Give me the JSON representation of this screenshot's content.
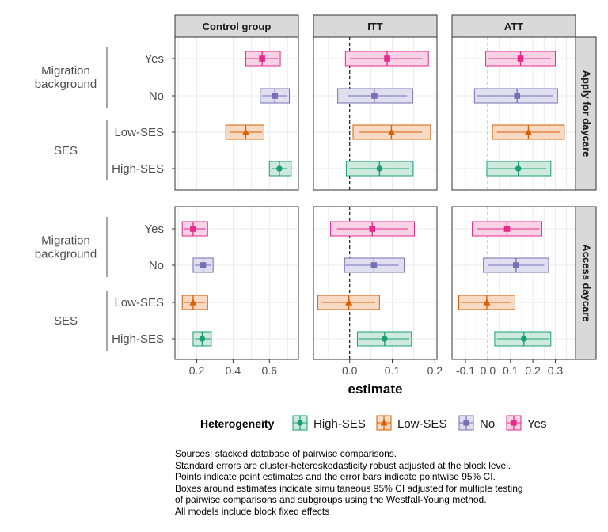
{
  "chart_data": {
    "type": "forest-faceted",
    "xlabel": "estimate",
    "columns": [
      {
        "label": "Control group",
        "xlim": [
          0.08,
          0.76
        ],
        "ticks": [
          0.2,
          0.4,
          0.6
        ],
        "tick_labels": [
          "0.2",
          "0.4",
          "0.6"
        ],
        "ref_line": null
      },
      {
        "label": "ITT",
        "xlim": [
          -0.085,
          0.205
        ],
        "ticks": [
          0.0,
          0.1,
          0.2
        ],
        "tick_labels": [
          "0.0",
          "0.1",
          "0.2"
        ],
        "ref_line": 0
      },
      {
        "label": "ATT",
        "xlim": [
          -0.16,
          0.39
        ],
        "ticks": [
          -0.1,
          0.0,
          0.1,
          0.2,
          0.3
        ],
        "tick_labels": [
          "-0.1",
          "0.0",
          "0.1",
          "0.2",
          "0.3"
        ],
        "ref_line": 0
      }
    ],
    "rows": [
      {
        "label": "Apply for daycare"
      },
      {
        "label": "Access daycare"
      }
    ],
    "y_categories": [
      "Yes",
      "No",
      "Low-SES",
      "High-SES"
    ],
    "y_groups": [
      {
        "label_lines": [
          "Migration",
          "background"
        ],
        "members": [
          "Yes",
          "No"
        ]
      },
      {
        "label_lines": [
          "SES"
        ],
        "members": [
          "Low-SES",
          "High-SES"
        ]
      }
    ],
    "legend": {
      "title": "Heterogeneity",
      "position": "bottom",
      "entries": [
        {
          "label": "High-SES",
          "color": "#1b9e77",
          "fill": "#cdeadd",
          "shape": "circle"
        },
        {
          "label": "Low-SES",
          "color": "#d95f02",
          "fill": "#f8dac4",
          "shape": "triangle"
        },
        {
          "label": "No",
          "color": "#7570b3",
          "fill": "#e0dff0",
          "shape": "square"
        },
        {
          "label": "Yes",
          "color": "#e7298a",
          "fill": "#f9d2e6",
          "shape": "square"
        }
      ]
    },
    "panels": [
      {
        "row": 0,
        "col": 0,
        "points": [
          {
            "cat": "Yes",
            "est": 0.56,
            "ci": [
              0.47,
              0.65
            ],
            "box": [
              0.47,
              0.66
            ]
          },
          {
            "cat": "No",
            "est": 0.63,
            "ci": [
              0.56,
              0.7
            ],
            "box": [
              0.55,
              0.71
            ]
          },
          {
            "cat": "Low-SES",
            "est": 0.47,
            "ci": [
              0.38,
              0.56
            ],
            "box": [
              0.36,
              0.57
            ]
          },
          {
            "cat": "High-SES",
            "est": 0.655,
            "ci": [
              0.61,
              0.7
            ],
            "box": [
              0.6,
              0.72
            ]
          }
        ]
      },
      {
        "row": 0,
        "col": 1,
        "points": [
          {
            "cat": "Yes",
            "est": 0.088,
            "ci": [
              0.0,
              0.17
            ],
            "box": [
              -0.01,
              0.185
            ]
          },
          {
            "cat": "No",
            "est": 0.058,
            "ci": [
              -0.005,
              0.135
            ],
            "box": [
              -0.028,
              0.148
            ]
          },
          {
            "cat": "Low-SES",
            "est": 0.098,
            "ci": [
              0.023,
              0.17
            ],
            "box": [
              0.008,
              0.19
            ]
          },
          {
            "cat": "High-SES",
            "est": 0.07,
            "ci": [
              0.0,
              0.14
            ],
            "box": [
              -0.008,
              0.149
            ]
          }
        ]
      },
      {
        "row": 0,
        "col": 2,
        "points": [
          {
            "cat": "Yes",
            "est": 0.145,
            "ci": [
              0.0,
              0.28
            ],
            "box": [
              -0.01,
              0.3
            ]
          },
          {
            "cat": "No",
            "est": 0.13,
            "ci": [
              -0.05,
              0.29
            ],
            "box": [
              -0.06,
              0.31
            ]
          },
          {
            "cat": "Low-SES",
            "est": 0.18,
            "ci": [
              0.04,
              0.32
            ],
            "box": [
              0.02,
              0.34
            ]
          },
          {
            "cat": "High-SES",
            "est": 0.135,
            "ci": [
              0.0,
              0.26
            ],
            "box": [
              -0.005,
              0.28
            ]
          }
        ]
      },
      {
        "row": 1,
        "col": 0,
        "points": [
          {
            "cat": "Yes",
            "est": 0.18,
            "ci": [
              0.13,
              0.25
            ],
            "box": [
              0.12,
              0.26
            ]
          },
          {
            "cat": "No",
            "est": 0.235,
            "ci": [
              0.19,
              0.28
            ],
            "box": [
              0.18,
              0.29
            ]
          },
          {
            "cat": "Low-SES",
            "est": 0.18,
            "ci": [
              0.13,
              0.25
            ],
            "box": [
              0.12,
              0.26
            ]
          },
          {
            "cat": "High-SES",
            "est": 0.23,
            "ci": [
              0.19,
              0.28
            ],
            "box": [
              0.18,
              0.28
            ]
          }
        ]
      },
      {
        "row": 1,
        "col": 1,
        "points": [
          {
            "cat": "Yes",
            "est": 0.053,
            "ci": [
              -0.03,
              0.137
            ],
            "box": [
              -0.045,
              0.152
            ]
          },
          {
            "cat": "No",
            "est": 0.057,
            "ci": [
              -0.01,
              0.115
            ],
            "box": [
              -0.012,
              0.128
            ]
          },
          {
            "cat": "Low-SES",
            "est": -0.002,
            "ci": [
              -0.065,
              0.06
            ],
            "box": [
              -0.075,
              0.07
            ]
          },
          {
            "cat": "High-SES",
            "est": 0.082,
            "ci": [
              0.02,
              0.14
            ],
            "box": [
              0.018,
              0.145
            ]
          }
        ]
      },
      {
        "row": 1,
        "col": 2,
        "points": [
          {
            "cat": "Yes",
            "est": 0.085,
            "ci": [
              -0.05,
              0.23
            ],
            "box": [
              -0.07,
              0.24
            ]
          },
          {
            "cat": "No",
            "est": 0.125,
            "ci": [
              0.0,
              0.25
            ],
            "box": [
              -0.02,
              0.27
            ]
          },
          {
            "cat": "Low-SES",
            "est": -0.005,
            "ci": [
              -0.12,
              0.1
            ],
            "box": [
              -0.13,
              0.12
            ]
          },
          {
            "cat": "High-SES",
            "est": 0.16,
            "ci": [
              0.04,
              0.27
            ],
            "box": [
              0.03,
              0.28
            ]
          }
        ]
      }
    ]
  },
  "notes": [
    "Sources: stacked database of pairwise comparisons.",
    "Standard errors are cluster-heteroskedasticity robust adjusted at the block level.",
    "Points indicate point estimates and the error bars indicate pointwise 95% CI.",
    "Boxes around estimates indicate simultaneous 95% CI adjusted for multiple testing",
    "of pairwise comparisons and subgroups using the Westfall-Young method.",
    "All models include block fixed effects"
  ]
}
